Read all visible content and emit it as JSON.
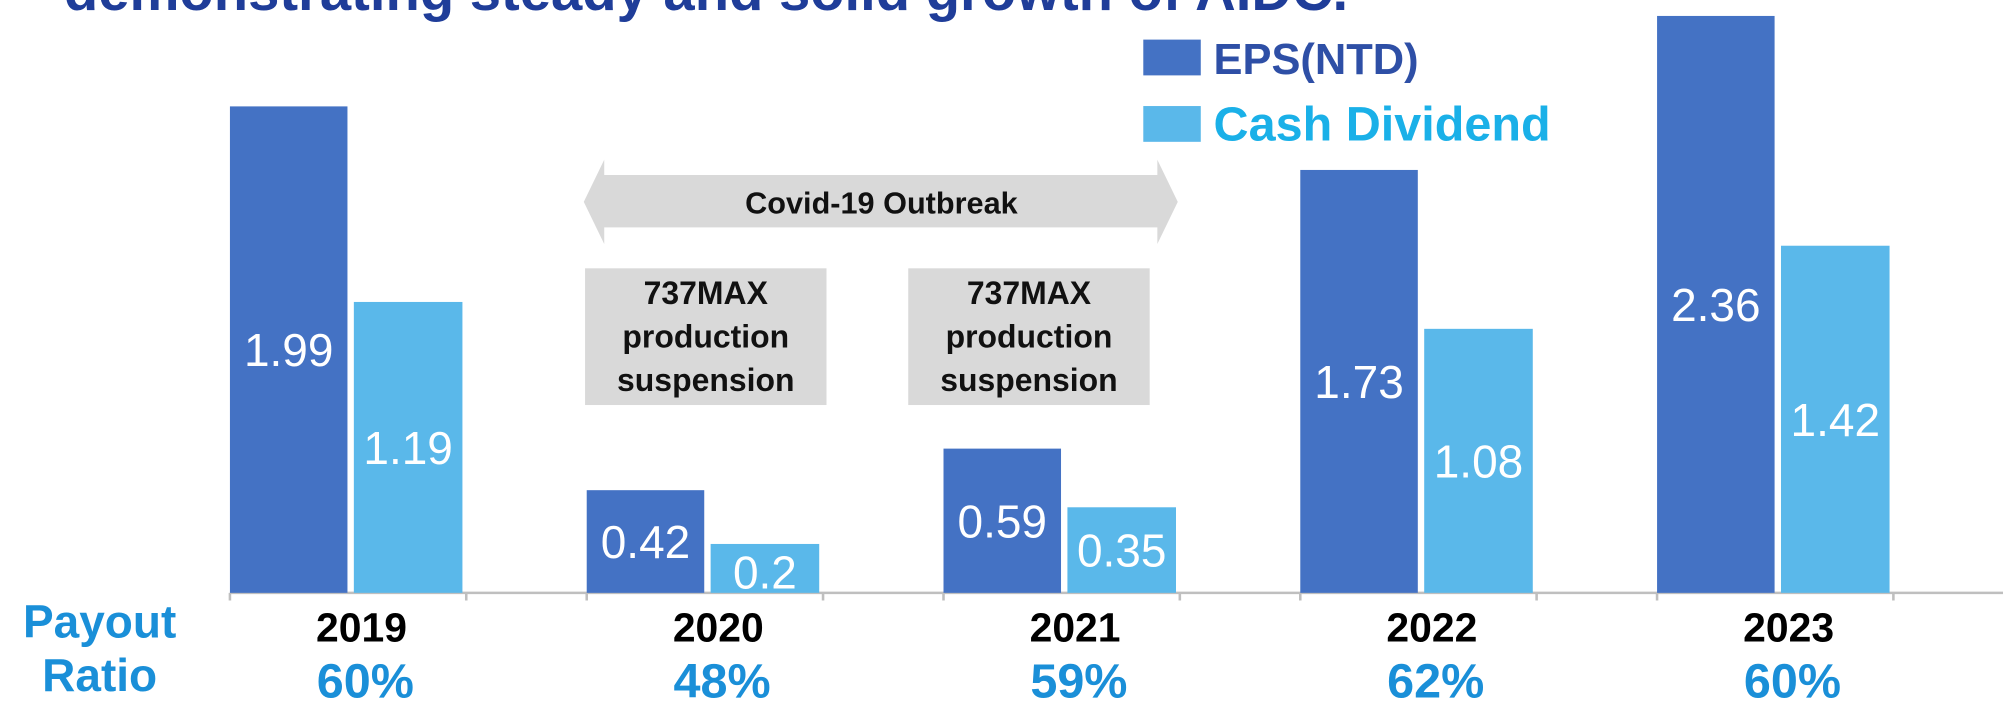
{
  "chart_data": {
    "type": "bar",
    "title": "demonstrating steady and solid growth of AIDC.",
    "categories": [
      "2019",
      "2020",
      "2021",
      "2022",
      "2023"
    ],
    "series": [
      {
        "name": "EPS(NTD)",
        "color": "#4472c4",
        "values": [
          1.99,
          0.42,
          0.59,
          1.73,
          2.36
        ]
      },
      {
        "name": "Cash Dividend",
        "color": "#5ab8ea",
        "values": [
          1.19,
          0.2,
          0.35,
          1.08,
          1.42
        ]
      }
    ],
    "ylim": [
      0,
      2.42
    ],
    "annotations": [
      "Covid-19 Outbreak",
      "737MAX production suspension",
      "737MAX production suspension"
    ],
    "payout_ratio": {
      "label": "Payout Ratio",
      "values": [
        60,
        48,
        59,
        62,
        60
      ],
      "value_labels": [
        "60%",
        "48%",
        "59%",
        "62%",
        "60%"
      ]
    }
  }
}
